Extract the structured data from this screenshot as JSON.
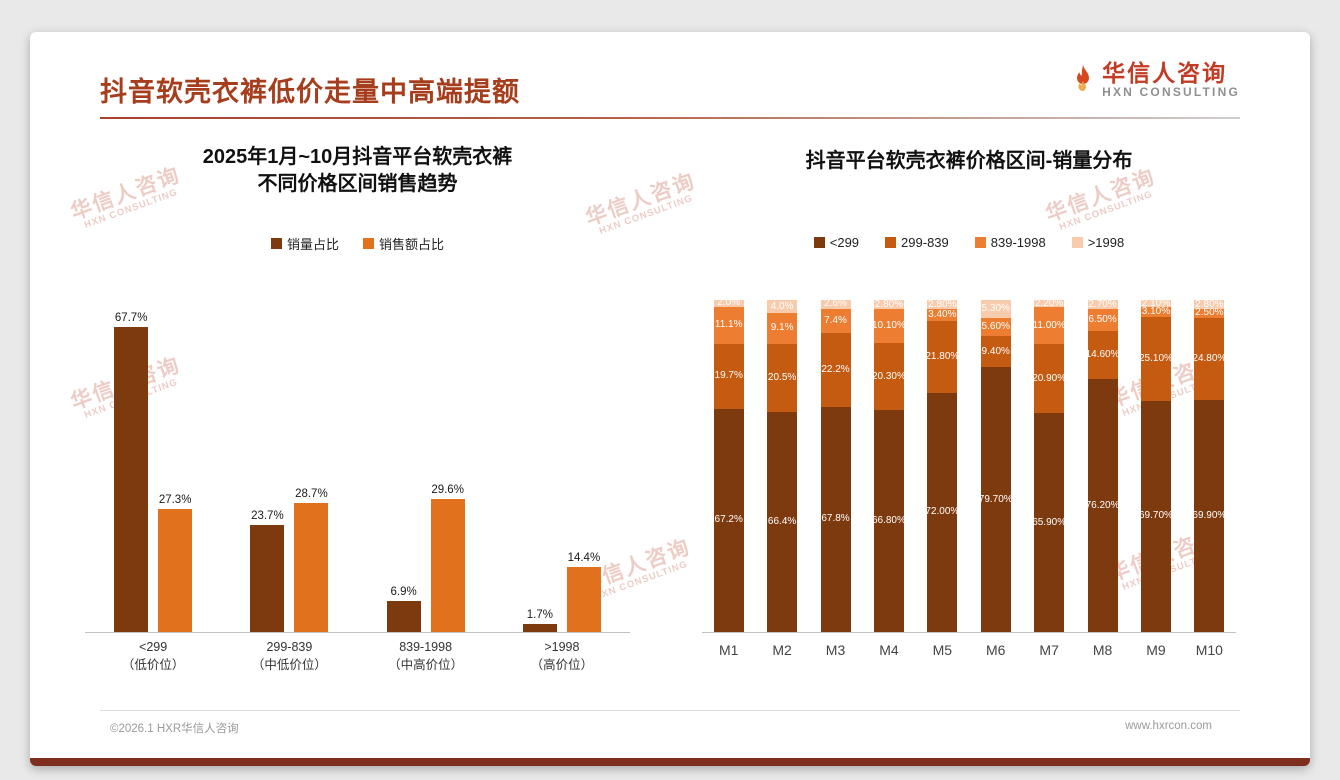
{
  "page": {
    "title": "抖音软壳衣裤低价走量中高端提额",
    "logo": {
      "cn": "华信人咨询",
      "en": "HXN CONSULTING"
    },
    "watermark": {
      "line1": "华信人咨询",
      "line2": "HXN CONSULTING"
    },
    "footer": {
      "left": "©2026.1 HXR华信人咨询",
      "right": "www.hxrcon.com"
    }
  },
  "colors": {
    "title_accent": "#A63E1E",
    "footer_bar": "#7D2E1F",
    "volume": "#7E3A0F",
    "revenue": "#E2711D",
    "stack_1": "#7E3A0F",
    "stack_2": "#C55A11",
    "stack_3": "#ED7D31",
    "stack_4": "#F8CBAD"
  },
  "chart_data": [
    {
      "type": "bar",
      "stacked": false,
      "title_lines": [
        "2025年1月~10月抖音平台软壳衣裤",
        "不同价格区间销售趋势"
      ],
      "categories": [
        "<299",
        "299-839",
        "839-1998",
        ">1998"
      ],
      "category_sublabels": [
        "（低价位）",
        "（中低价位）",
        "（中高价位）",
        "（高价位）"
      ],
      "ylim": [
        0,
        73
      ],
      "grid": false,
      "legend_position": "top",
      "series": [
        {
          "name": "销量占比",
          "color": "#7E3A0F",
          "values": [
            67.7,
            23.7,
            6.9,
            1.7
          ],
          "labels": [
            "67.7%",
            "23.7%",
            "6.9%",
            "1.7%"
          ]
        },
        {
          "name": "销售额占比",
          "color": "#E2711D",
          "values": [
            27.3,
            28.7,
            29.6,
            14.4
          ],
          "labels": [
            "27.3%",
            "28.7%",
            "29.6%",
            "14.4%"
          ]
        }
      ]
    },
    {
      "type": "bar",
      "stacked": true,
      "title_lines": [
        "抖音平台软壳衣裤价格区间-销量分布"
      ],
      "categories": [
        "M1",
        "M2",
        "M3",
        "M4",
        "M5",
        "M6",
        "M7",
        "M8",
        "M9",
        "M10"
      ],
      "ylim": [
        0,
        100
      ],
      "grid": false,
      "legend_position": "top",
      "series": [
        {
          "name": "<299",
          "color": "#7E3A0F",
          "values": [
            67.2,
            66.4,
            67.8,
            66.8,
            72.0,
            79.7,
            65.9,
            76.2,
            69.7,
            69.9
          ],
          "labels": [
            "67.2%",
            "66.4%",
            "67.8%",
            "66.80%",
            "72.00%",
            "79.70%",
            "65.90%",
            "76.20%",
            "69.70%",
            "69.90%"
          ]
        },
        {
          "name": "299-839",
          "color": "#C55A11",
          "values": [
            19.7,
            20.5,
            22.2,
            20.3,
            21.8,
            9.4,
            20.9,
            14.6,
            25.1,
            24.8
          ],
          "labels": [
            "19.7%",
            "20.5%",
            "22.2%",
            "20.30%",
            "21.80%",
            "9.40%",
            "20.90%",
            "14.60%",
            "25.10%",
            "24.80%"
          ]
        },
        {
          "name": "839-1998",
          "color": "#ED7D31",
          "values": [
            11.1,
            9.1,
            7.4,
            10.1,
            3.4,
            5.6,
            11.0,
            6.5,
            3.1,
            2.5
          ],
          "labels": [
            "11.1%",
            "9.1%",
            "7.4%",
            "10.10%",
            "3.40%",
            "5.60%",
            "11.00%",
            "6.50%",
            "3.10%",
            "2.50%"
          ]
        },
        {
          "name": ">1998",
          "color": "#F8CBAD",
          "values": [
            2.0,
            4.0,
            2.6,
            2.8,
            2.8,
            5.3,
            2.2,
            2.7,
            2.1,
            2.8
          ],
          "labels": [
            "2.0%",
            "4.0%",
            "2.6%",
            "2.80%",
            "2.80%",
            "5.30%",
            "2.20%",
            "2.70%",
            "2.10%",
            "2.80%"
          ]
        }
      ]
    }
  ]
}
